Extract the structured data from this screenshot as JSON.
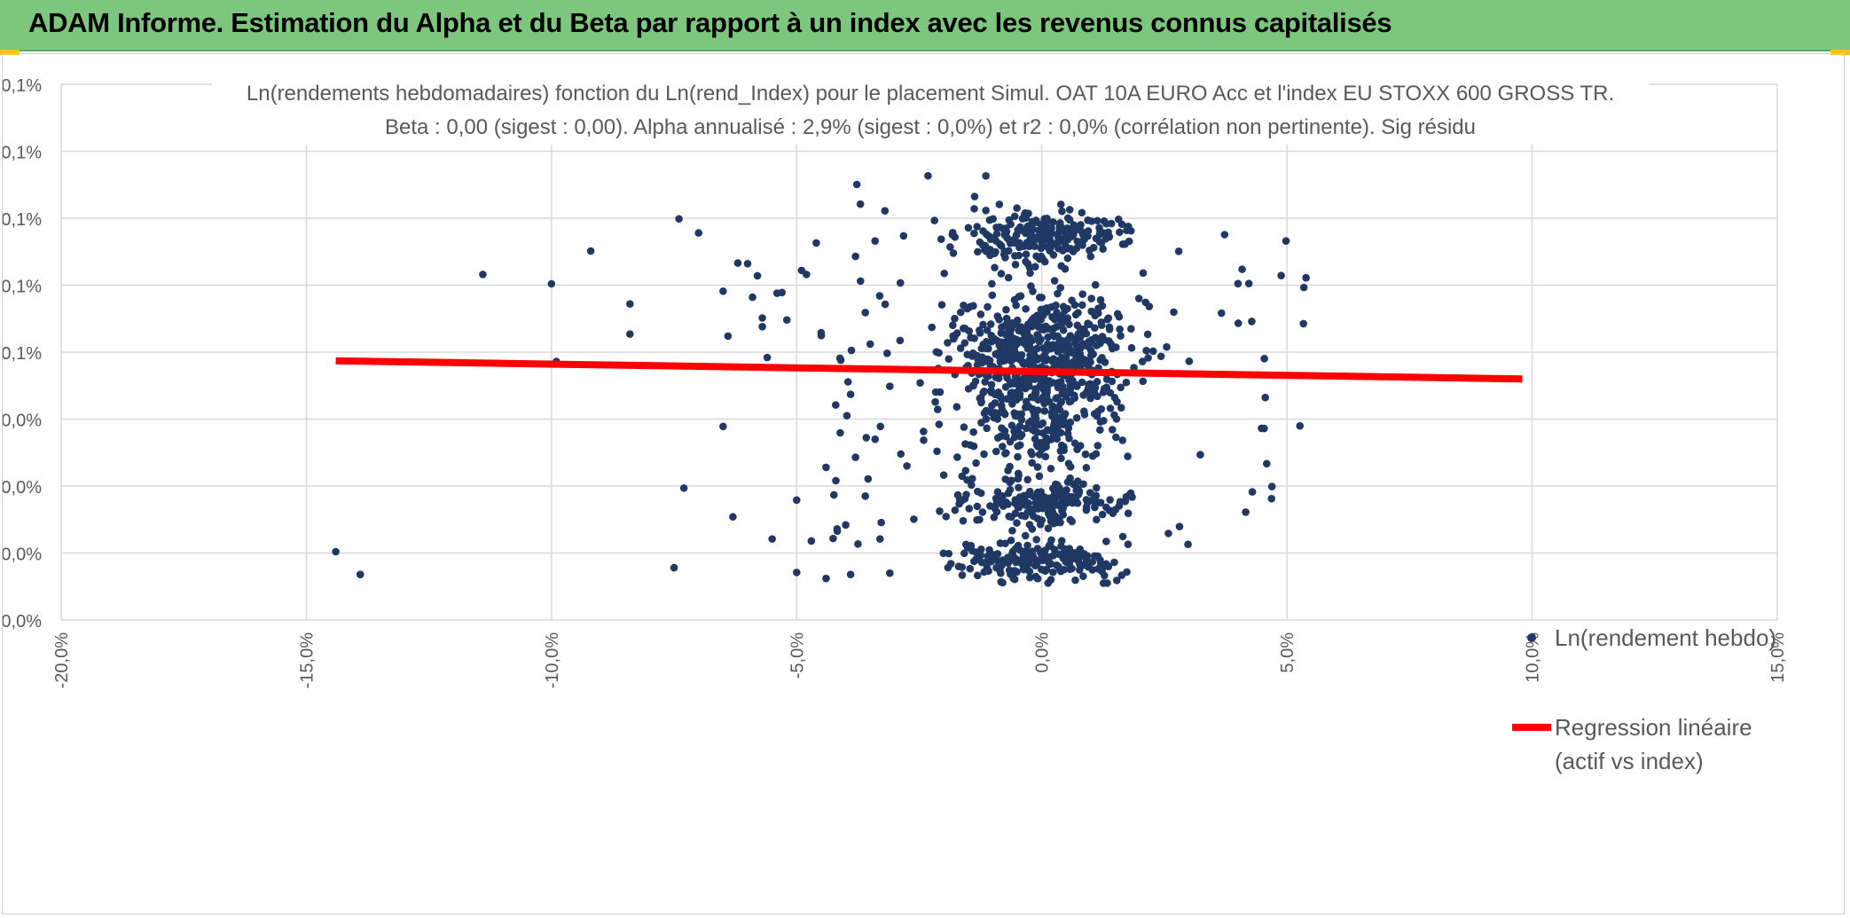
{
  "header": {
    "title": "ADAM Informe. Estimation du Alpha et du Beta par rapport à un index avec les revenus connus capitalisés"
  },
  "colors": {
    "banner": "#7dc67d",
    "accent_corner": "#f2c21b",
    "points": "#1f3864",
    "regression": "#ff0000",
    "grid": "#d9d9d9"
  },
  "chart_data": {
    "type": "scatter",
    "title": "Ln(rendements hebdomadaires) fonction du Ln(rend_Index) pour le placement Simul. OAT 10A EURO Acc et l'index EU STOXX 600 GROSS TR.",
    "subtitle": "Beta : 0,00 (sigest : 0,00). Alpha annualisé : 2,9% (sigest : 0,0%) et r2 : 0,0% (corrélation non pertinente). Sig résidu",
    "xlabel": "",
    "ylabel": "",
    "x_ticks": [
      "-20,0%",
      "-15,0%",
      "-10,0%",
      "-5,0%",
      "0,0%",
      "5,0%",
      "10,0%",
      "15,0%"
    ],
    "y_ticks": [
      "0,0%",
      "0,0%",
      "0,0%",
      "0,0%",
      "0,1%",
      "0,1%",
      "0,1%",
      "0,1%",
      "0,1%"
    ],
    "xlim": [
      -0.2,
      0.15
    ],
    "ylim": [
      0.0,
      0.0008
    ],
    "grid": true,
    "legend": {
      "position": "right",
      "scatter_label": "Ln(rendement hebdo)",
      "line_label_1": "Regression linéaire",
      "line_label_2": "(actif vs index)"
    },
    "series": [
      {
        "name": "Ln(rendement hebdo)",
        "points": [
          [
            -0.144,
            0.000102
          ],
          [
            -0.139,
            6.8e-05
          ],
          [
            -0.114,
            0.000516
          ],
          [
            -0.1,
            0.000502
          ],
          [
            -0.099,
            0.000386
          ],
          [
            -0.092,
            0.000551
          ],
          [
            -0.084,
            0.000472
          ],
          [
            -0.084,
            0.000427
          ],
          [
            -0.075,
            7.8e-05
          ],
          [
            -0.074,
            0.000599
          ],
          [
            -0.073,
            0.000197
          ],
          [
            -0.07,
            0.000578
          ],
          [
            -0.065,
            0.000289
          ],
          [
            -0.065,
            0.000491
          ],
          [
            -0.064,
            0.000424
          ],
          [
            -0.063,
            0.000154
          ],
          [
            -0.062,
            0.000533
          ],
          [
            -0.06,
            0.000532
          ],
          [
            -0.059,
            0.000482
          ],
          [
            -0.058,
            0.000514
          ],
          [
            -0.057,
            0.000451
          ],
          [
            -0.057,
            0.000438
          ],
          [
            -0.056,
            0.000392
          ],
          [
            -0.055,
            0.000121
          ],
          [
            -0.054,
            0.000488
          ],
          [
            -0.053,
            0.000489
          ],
          [
            -0.052,
            0.000448
          ],
          [
            -0.05,
            0.000179
          ],
          [
            -0.05,
            7.1e-05
          ],
          [
            -0.049,
            0.000522
          ],
          [
            -0.048,
            0.000516
          ],
          [
            -0.047,
            0.000118
          ],
          [
            -0.046,
            0.000563
          ],
          [
            -0.045,
            0.000429
          ],
          [
            -0.044,
            6.2e-05
          ],
          [
            -0.042,
            0.000208
          ],
          [
            -0.041,
            0.000388
          ],
          [
            -0.04,
            0.000142
          ],
          [
            -0.039,
            0.000337
          ],
          [
            -0.039,
            6.8e-05
          ],
          [
            -0.038,
            0.000543
          ],
          [
            -0.038,
            0.000243
          ],
          [
            -0.037,
            0.000621
          ],
          [
            -0.036,
            0.000185
          ],
          [
            -0.036,
            0.000459
          ],
          [
            -0.035,
            0.000412
          ],
          [
            -0.034,
            0.000566
          ],
          [
            -0.034,
            0.00027
          ],
          [
            -0.033,
            0.000121
          ],
          [
            -0.032,
            0.000611
          ],
          [
            -0.031,
            7e-05
          ],
          [
            -0.031,
            0.000349
          ]
        ],
        "cloud": {
          "center_x": 0.0,
          "x_spread": 0.021,
          "bands": [
            {
              "center_y": 0.000398,
              "spread": 8.5e-05,
              "weight": 0.42
            },
            {
              "center_y": 0.000575,
              "spread": 3.5e-05,
              "weight": 0.18
            },
            {
              "center_y": 0.000175,
              "spread": 3e-05,
              "weight": 0.14
            },
            {
              "center_y": 8.8e-05,
              "spread": 2.5e-05,
              "weight": 0.14
            },
            {
              "center_y": 0.00029,
              "spread": 7e-05,
              "weight": 0.12
            }
          ],
          "count": 1300,
          "y_range": [
            5.5e-05,
            0.00067
          ]
        }
      },
      {
        "name": "Regression linéaire",
        "type": "line",
        "x": [
          -0.144,
          0.098
        ],
        "y": [
          0.000387,
          0.00036
        ]
      }
    ]
  }
}
